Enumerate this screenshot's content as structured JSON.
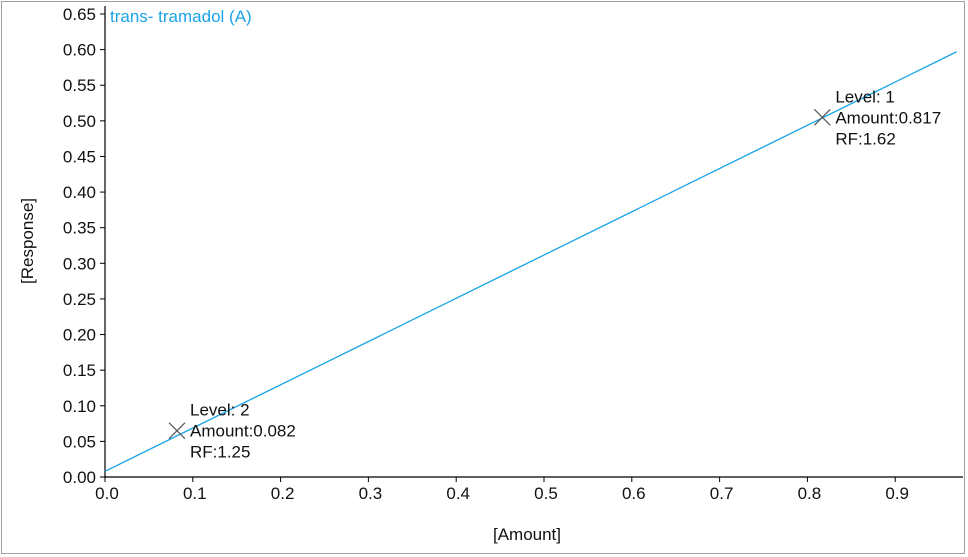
{
  "chart_data": {
    "type": "scatter",
    "title": "trans- tramadol (A)",
    "xlabel": "[Amount]",
    "ylabel": "[Response]",
    "xlim": [
      0.0,
      0.97
    ],
    "ylim": [
      0.0,
      0.65
    ],
    "x_ticks": [
      "0.0",
      "0.1",
      "0.2",
      "0.3",
      "0.4",
      "0.5",
      "0.6",
      "0.7",
      "0.8",
      "0.9"
    ],
    "y_ticks": [
      "0.00",
      "0.05",
      "0.10",
      "0.15",
      "0.20",
      "0.25",
      "0.30",
      "0.35",
      "0.40",
      "0.45",
      "0.50",
      "0.55",
      "0.60",
      "0.65"
    ],
    "line_color": "#1aa3e8",
    "marker_color": "#555555",
    "fit_line": {
      "x": [
        0.0,
        0.97
      ],
      "y": [
        0.008,
        0.597
      ]
    },
    "points": [
      {
        "x": 0.817,
        "y": 0.505,
        "labels": [
          "Level: 1",
          "Amount:0.817",
          "RF:1.62"
        ]
      },
      {
        "x": 0.082,
        "y": 0.065,
        "labels": [
          "Level: 2",
          "Amount:0.082",
          "RF:1.25"
        ]
      }
    ]
  }
}
